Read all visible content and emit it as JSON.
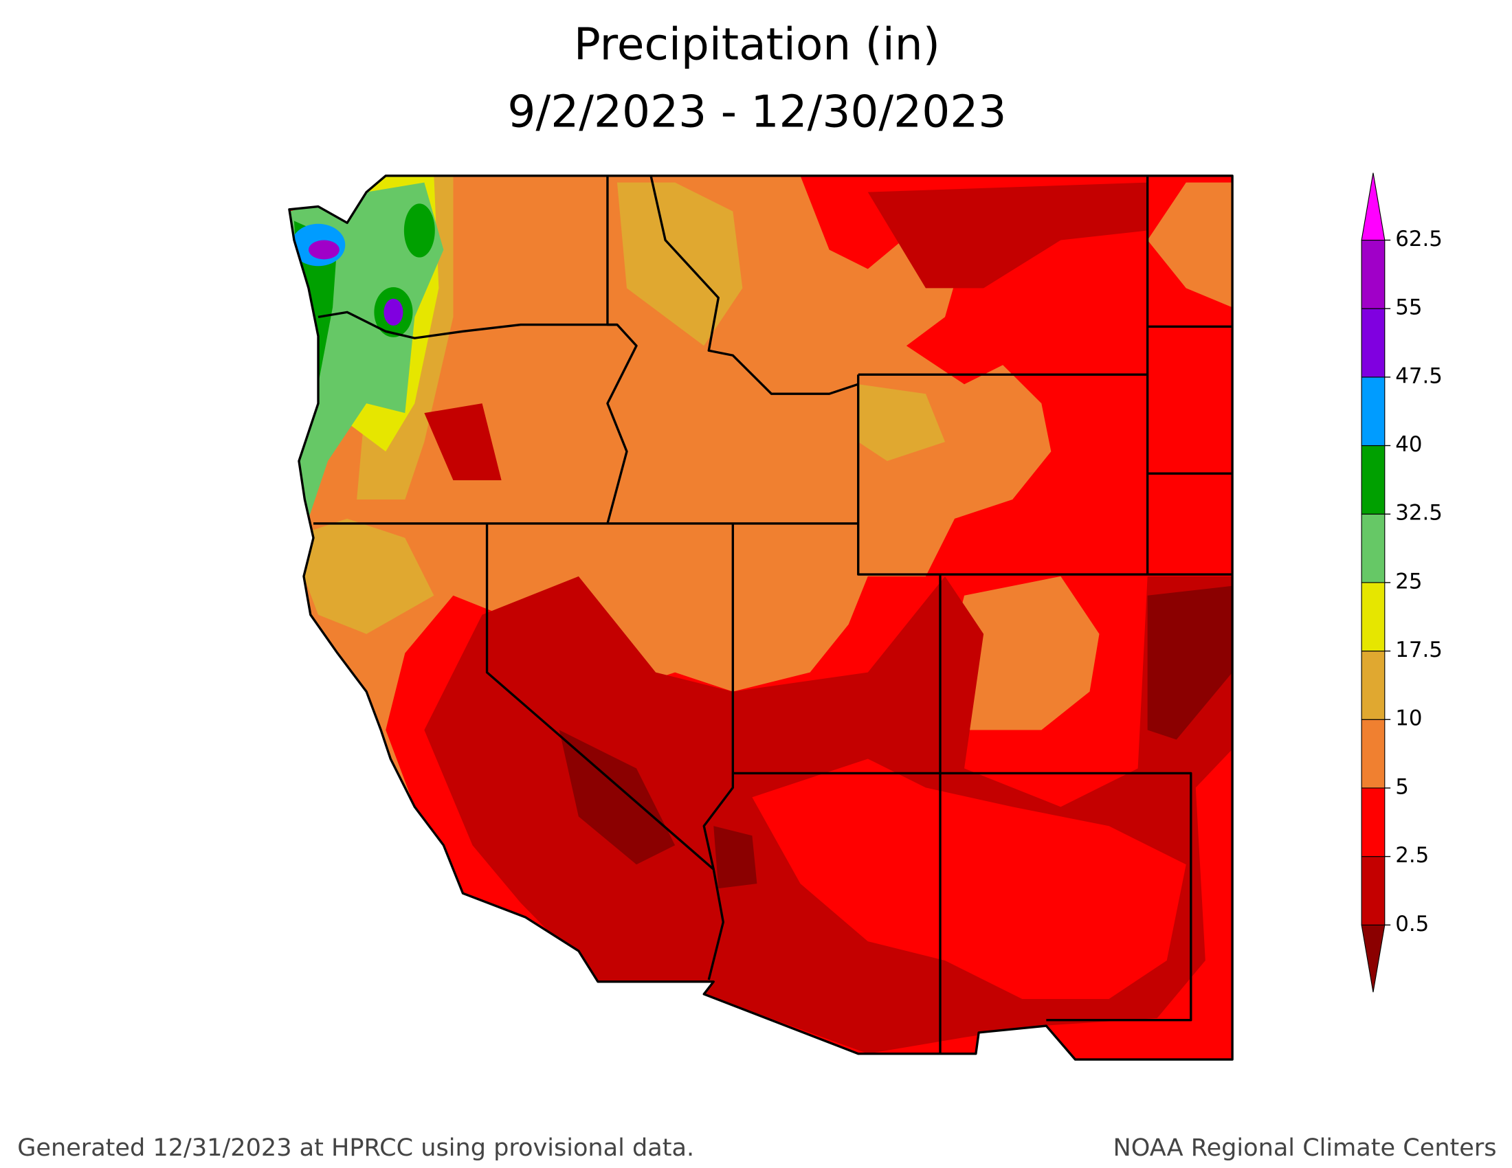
{
  "title": "Precipitation (in)",
  "subtitle": "9/2/2023 - 12/30/2023",
  "legend": {
    "levels": [
      0.5,
      2.5,
      5,
      10,
      17.5,
      25,
      32.5,
      40,
      47.5,
      55,
      62.5
    ],
    "colors": [
      "#8b0000",
      "#c40000",
      "#ff0000",
      "#f08030",
      "#e0a830",
      "#e6e600",
      "#66c866",
      "#00a000",
      "#009cff",
      "#8000e0",
      "#a000c8",
      "#ff00ff"
    ]
  },
  "footer": {
    "left": "Generated 12/31/2023 at HPRCC using provisional data.",
    "right": "NOAA Regional Climate Centers"
  }
}
